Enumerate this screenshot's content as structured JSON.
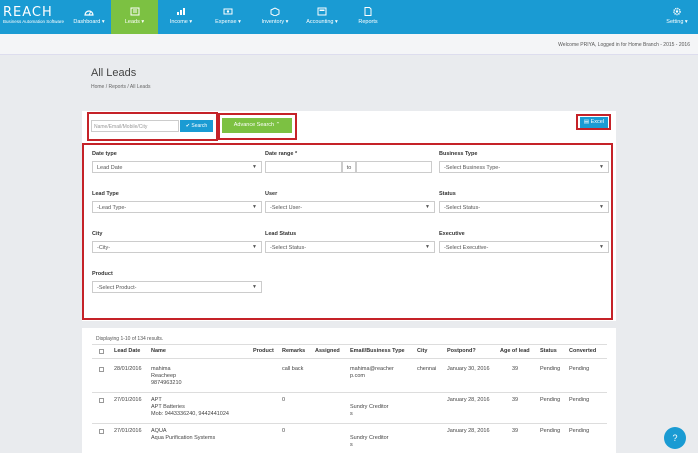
{
  "app": {
    "brand": "REACH",
    "tagline": "Business Automation Software",
    "welcome": "Welcome PRIYA, Logged in for Home Branch - 2015 - 2016"
  },
  "nav": {
    "items": [
      {
        "label": "Dashboard ▾",
        "icon": "dashboard-icon"
      },
      {
        "label": "Leads ▾",
        "icon": "leads-icon"
      },
      {
        "label": "Income ▾",
        "icon": "income-icon"
      },
      {
        "label": "Expense ▾",
        "icon": "expense-icon"
      },
      {
        "label": "Inventory ▾",
        "icon": "inventory-icon"
      },
      {
        "label": "Accounting ▾",
        "icon": "accounting-icon"
      },
      {
        "label": "Reports",
        "icon": "reports-icon"
      }
    ],
    "settings": "Setting ▾"
  },
  "page": {
    "title": "All Leads",
    "breadcrumb": "Home  /  Reports  /  All Leads"
  },
  "search": {
    "placeholder": "Name/Email/Mobile/City",
    "button": "Search",
    "advanced": "Advance Search",
    "excel": "Excel"
  },
  "filters": {
    "date_type_label": "Date type",
    "date_type_value": "Lead Date",
    "date_range_label": "Date range *",
    "date_range_to": "to",
    "business_type_label": "Business Type",
    "business_type_value": "-Select Business Type-",
    "lead_type_label": "Lead Type",
    "lead_type_value": "-Lead Type-",
    "user_label": "User",
    "user_value": "-Select User-",
    "status_label": "Status",
    "status_value": "-Select Status-",
    "city_label": "City",
    "city_value": "-City-",
    "lead_status_label": "Lead Status",
    "lead_status_value": "-Select Status-",
    "executive_label": "Executive",
    "executive_value": "-Select Executive-",
    "product_label": "Product",
    "product_value": "-Select Product-"
  },
  "table": {
    "summary": "Displaying 1-10 of 134 results.",
    "headers": [
      "Lead Date",
      "Name",
      "Product",
      "Remarks",
      "Assigned",
      "Email/Business Type",
      "City",
      "Postpond?",
      "Age of lead",
      "Status",
      "Converted"
    ],
    "rows": [
      {
        "date": "28/01/2016",
        "name1": "mahima",
        "name2": "Reacheep",
        "name3": "9874963210",
        "product": "",
        "remarks": "call back",
        "assigned": "",
        "email1": "mahima@reacher",
        "email2": "p.com",
        "city": "chennai",
        "postpond": "January 30, 2016",
        "age": "39",
        "status": "Pending",
        "converted": "Pending"
      },
      {
        "date": "27/01/2016",
        "name1": "APT",
        "name2": "APT Batteries",
        "name3": "Mob: 9443336240, 9442441024",
        "product": "",
        "remarks": "0",
        "assigned": "",
        "email1": "Sundry Creditor",
        "email2": "s",
        "city": "",
        "postpond": "January 28, 2016",
        "age": "39",
        "status": "Pending",
        "converted": "Pending"
      },
      {
        "date": "27/01/2016",
        "name1": "AQUA",
        "name2": "Aqua Purification Systems",
        "name3": "",
        "product": "",
        "remarks": "0",
        "assigned": "",
        "email1": "Sundry Creditor",
        "email2": "s",
        "city": "",
        "postpond": "January 28, 2016",
        "age": "39",
        "status": "Pending",
        "converted": "Pending"
      }
    ]
  },
  "colors": {
    "nav": "#1a9bd3",
    "active": "#7cc142",
    "highlight": "#c52228"
  }
}
